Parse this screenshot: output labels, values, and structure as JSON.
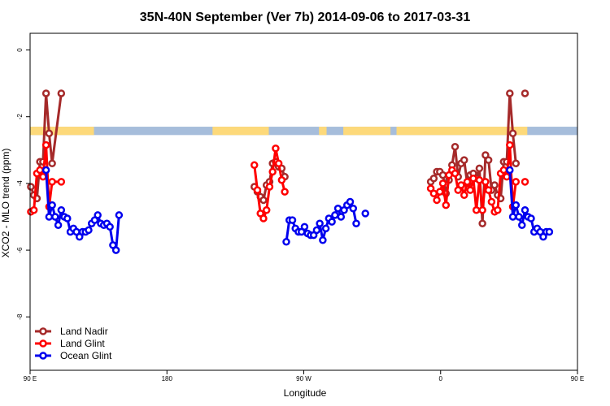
{
  "chart_data": {
    "type": "line",
    "title": "35N-40N September (Ver 7b)   2014-09-06 to 2017-03-31",
    "xlabel": "Longitude",
    "ylabel": "XCO2 - MLO trend (ppm)",
    "xlim": [
      90,
      450
    ],
    "ylim": [
      -9.6,
      0.5
    ],
    "x_ticks": [
      {
        "value": 90,
        "label": "90 E"
      },
      {
        "value": 180,
        "label": "180"
      },
      {
        "value": 270,
        "label": "90 W"
      },
      {
        "value": 360,
        "label": "0"
      },
      {
        "value": 450,
        "label": "90 E"
      },
      {
        "value": 540,
        "label": "180"
      }
    ],
    "y_ticks": [
      {
        "value": 0,
        "label": "0"
      },
      {
        "value": -2,
        "label": "-2"
      },
      {
        "value": -4,
        "label": "-4"
      },
      {
        "value": -6,
        "label": "-6"
      },
      {
        "value": -8,
        "label": "-8"
      }
    ],
    "grid": false,
    "legend_position": "bottom-left",
    "series": [
      {
        "name": "Land Nadir",
        "color": "#a52a2a",
        "segments": [
          [
            [
              90.5,
              -4.1
            ],
            [
              92.5,
              -4.35
            ],
            [
              94.5,
              -4.45
            ],
            [
              96.5,
              -3.35
            ],
            [
              98.5,
              -3.35
            ],
            [
              100.5,
              -1.3
            ],
            [
              102.5,
              -2.5
            ],
            [
              104.5,
              -3.4
            ],
            [
              110.5,
              -1.3
            ]
          ],
          [
            [
              237.5,
              -4.1
            ],
            [
              239.5,
              -4.25
            ],
            [
              241.5,
              -4.4
            ],
            [
              243.5,
              -4.5
            ],
            [
              245.5,
              -4.05
            ],
            [
              247.5,
              -3.95
            ],
            [
              249.5,
              -3.4
            ],
            [
              251.5,
              -3.35
            ],
            [
              253.5,
              -3.5
            ],
            [
              255.5,
              -3.55
            ],
            [
              257.5,
              -3.8
            ]
          ],
          [
            [
              353.5,
              -3.95
            ],
            [
              355.5,
              -3.85
            ],
            [
              357.5,
              -3.65
            ],
            [
              359.5,
              -3.65
            ],
            [
              361.5,
              -3.75
            ],
            [
              363.5,
              -4.3
            ],
            [
              365.5,
              -3.9
            ],
            [
              367.5,
              -3.45
            ],
            [
              369.5,
              -2.9
            ],
            [
              371.5,
              -3.8
            ],
            [
              373.5,
              -3.4
            ],
            [
              375.5,
              -3.3
            ],
            [
              377.5,
              -4.0
            ],
            [
              379.5,
              -3.75
            ],
            [
              381.5,
              -3.7
            ],
            [
              383.5,
              -3.85
            ],
            [
              385.5,
              -3.55
            ],
            [
              387.5,
              -5.2
            ],
            [
              389.5,
              -3.15
            ],
            [
              391.5,
              -3.3
            ],
            [
              393.5,
              -4.2
            ],
            [
              395.5,
              -4.05
            ],
            [
              397.5,
              -4.35
            ],
            [
              399.5,
              -4.45
            ],
            [
              401.5,
              -3.35
            ],
            [
              403.5,
              -3.35
            ],
            [
              405.5,
              -1.3
            ],
            [
              407.5,
              -2.5
            ],
            [
              409.5,
              -3.4
            ]
          ],
          [
            [
              415.5,
              -1.3
            ]
          ]
        ]
      },
      {
        "name": "Land Glint",
        "color": "#ff0000",
        "segments": [
          [
            [
              90.5,
              -4.85
            ],
            [
              92.5,
              -4.8
            ],
            [
              94.5,
              -3.7
            ],
            [
              96.5,
              -3.6
            ],
            [
              98.5,
              -3.8
            ],
            [
              100.5,
              -2.85
            ],
            [
              102.5,
              -4.7
            ],
            [
              104.5,
              -3.95
            ],
            [
              110.5,
              -3.95
            ]
          ],
          [
            [
              237.5,
              -3.45
            ],
            [
              239.5,
              -4.2
            ],
            [
              241.5,
              -4.9
            ],
            [
              243.5,
              -5.05
            ],
            [
              245.5,
              -4.8
            ],
            [
              247.5,
              -4.1
            ],
            [
              249.5,
              -3.65
            ],
            [
              251.5,
              -2.95
            ],
            [
              253.5,
              -3.4
            ],
            [
              255.5,
              -3.9
            ],
            [
              257.5,
              -4.25
            ]
          ],
          [
            [
              353.5,
              -4.15
            ],
            [
              355.5,
              -4.3
            ],
            [
              357.5,
              -4.5
            ],
            [
              359.5,
              -4.25
            ],
            [
              361.5,
              -4.0
            ],
            [
              363.5,
              -4.65
            ],
            [
              365.5,
              -3.75
            ],
            [
              367.5,
              -3.6
            ],
            [
              369.5,
              -3.7
            ],
            [
              371.5,
              -4.2
            ],
            [
              373.5,
              -4.05
            ],
            [
              375.5,
              -4.35
            ],
            [
              377.5,
              -3.95
            ],
            [
              379.5,
              -4.2
            ],
            [
              381.5,
              -3.85
            ],
            [
              383.5,
              -4.8
            ],
            [
              385.5,
              -3.9
            ],
            [
              387.5,
              -4.8
            ],
            [
              389.5,
              -3.95
            ],
            [
              391.5,
              -4.2
            ],
            [
              393.5,
              -4.55
            ],
            [
              395.5,
              -4.85
            ],
            [
              397.5,
              -4.8
            ],
            [
              399.5,
              -3.7
            ],
            [
              401.5,
              -3.6
            ],
            [
              403.5,
              -3.8
            ],
            [
              405.5,
              -2.85
            ],
            [
              407.5,
              -4.7
            ],
            [
              409.5,
              -3.95
            ]
          ],
          [
            [
              415.5,
              -3.95
            ]
          ]
        ]
      },
      {
        "name": "Ocean Glint",
        "color": "#0000ee",
        "segments": [
          [
            [
              100.5,
              -3.6
            ],
            [
              102.5,
              -5.0
            ],
            [
              104.5,
              -4.65
            ],
            [
              106.5,
              -5.0
            ],
            [
              108.5,
              -5.25
            ],
            [
              110.5,
              -4.8
            ],
            [
              112.5,
              -5.0
            ],
            [
              114.5,
              -5.05
            ],
            [
              116.5,
              -5.45
            ],
            [
              118.5,
              -5.35
            ],
            [
              120.5,
              -5.45
            ],
            [
              122.5,
              -5.6
            ],
            [
              124.5,
              -5.45
            ],
            [
              126.5,
              -5.45
            ],
            [
              128.5,
              -5.4
            ],
            [
              130.5,
              -5.2
            ],
            [
              132.5,
              -5.1
            ],
            [
              134.5,
              -4.95
            ],
            [
              136.5,
              -5.2
            ],
            [
              138.5,
              -5.25
            ],
            [
              140.5,
              -5.2
            ],
            [
              142.5,
              -5.3
            ],
            [
              144.5,
              -5.85
            ],
            [
              146.5,
              -6.0
            ],
            [
              148.5,
              -4.95
            ]
          ],
          [
            [
              258.5,
              -5.75
            ],
            [
              260.5,
              -5.1
            ],
            [
              262.5,
              -5.1
            ],
            [
              264.5,
              -5.35
            ],
            [
              266.5,
              -5.45
            ],
            [
              268.5,
              -5.45
            ],
            [
              270.5,
              -5.3
            ],
            [
              272.5,
              -5.5
            ],
            [
              274.5,
              -5.55
            ],
            [
              276.5,
              -5.55
            ],
            [
              278.5,
              -5.4
            ],
            [
              280.5,
              -5.2
            ],
            [
              282.5,
              -5.7
            ],
            [
              284.5,
              -5.35
            ],
            [
              286.5,
              -5.05
            ],
            [
              288.5,
              -5.15
            ],
            [
              290.5,
              -4.95
            ],
            [
              292.5,
              -4.75
            ],
            [
              294.5,
              -5.0
            ],
            [
              296.5,
              -4.8
            ],
            [
              298.5,
              -4.65
            ],
            [
              300.5,
              -4.55
            ],
            [
              302.5,
              -4.75
            ],
            [
              304.5,
              -5.2
            ]
          ],
          [
            [
              310.5,
              -4.9
            ]
          ],
          [
            [
              405.5,
              -3.6
            ],
            [
              407.5,
              -5.0
            ],
            [
              409.5,
              -4.65
            ],
            [
              411.5,
              -5.0
            ],
            [
              413.5,
              -5.25
            ],
            [
              415.5,
              -4.8
            ],
            [
              417.5,
              -5.0
            ],
            [
              419.5,
              -5.05
            ],
            [
              421.5,
              -5.45
            ],
            [
              423.5,
              -5.35
            ],
            [
              425.5,
              -5.45
            ],
            [
              427.5,
              -5.6
            ],
            [
              429.5,
              -5.45
            ],
            [
              431.5,
              -5.45
            ]
          ]
        ]
      }
    ],
    "band": {
      "y_top": -2.3,
      "y_bottom": -2.55,
      "ocean_color": "#a6bddb",
      "land_color": "#fdd97a",
      "land_ranges": [
        [
          90,
          132
        ],
        [
          210,
          247
        ],
        [
          280,
          285
        ],
        [
          296,
          327
        ],
        [
          331,
          417
        ]
      ]
    }
  }
}
